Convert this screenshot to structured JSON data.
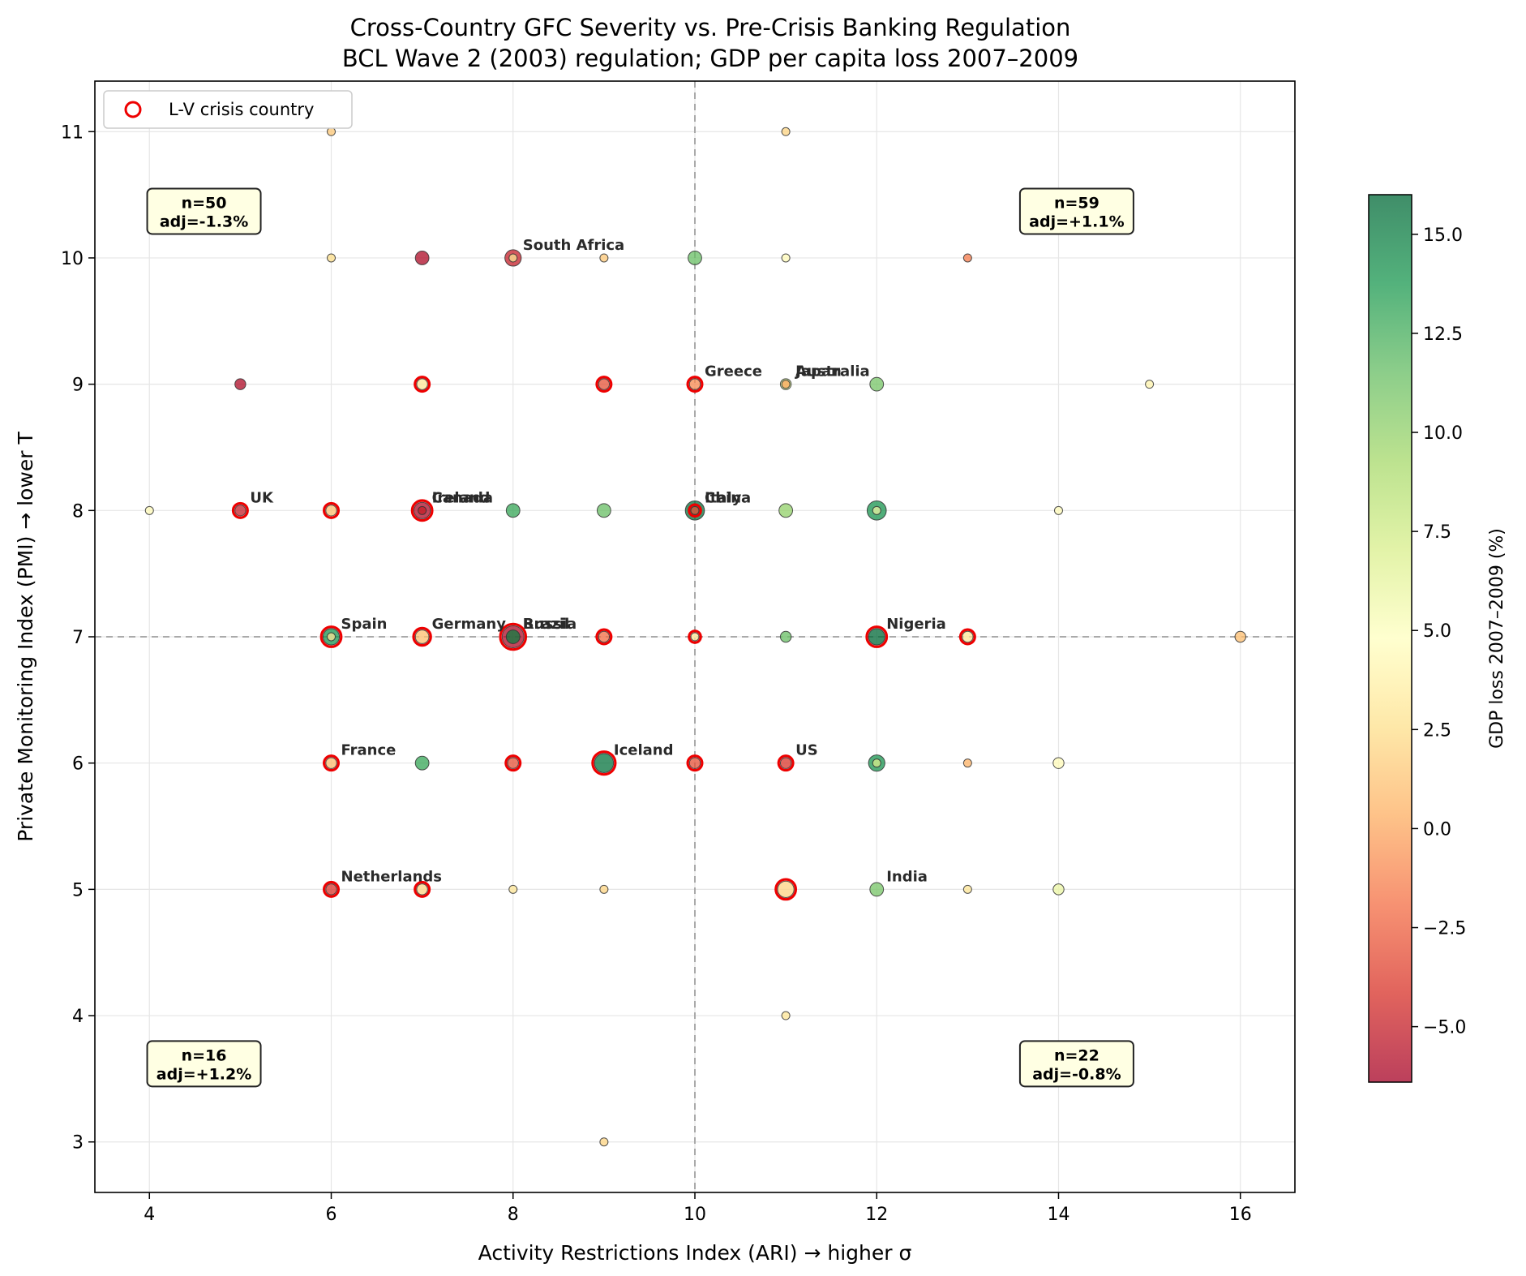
{
  "chart_data": {
    "type": "scatter",
    "title": "Cross-Country GFC Severity vs. Pre-Crisis Banking Regulation",
    "subtitle": "BCL Wave 2 (2003) regulation; GDP per capita loss 2007–2009",
    "xlabel": "Activity Restrictions Index (ARI) → higher σ",
    "ylabel": "Private Monitoring Index (PMI) → lower T",
    "xlim": [
      3.4,
      16.6
    ],
    "ylim": [
      2.6,
      11.4
    ],
    "xticks": [
      4,
      6,
      8,
      10,
      12,
      14,
      16
    ],
    "yticks": [
      3,
      4,
      5,
      6,
      7,
      8,
      9,
      10,
      11
    ],
    "grid": true,
    "reference_lines": {
      "x": 10,
      "y": 7
    },
    "colorbar": {
      "label": "GDP loss 2007–2009 (%)",
      "range": [
        -6.4,
        16.0
      ],
      "ticks": [
        "−5.0",
        "−2.5",
        "0.0",
        "2.5",
        "5.0",
        "7.5",
        "10.0",
        "12.5",
        "15.0"
      ],
      "tick_values": [
        -5,
        -2.5,
        0,
        2.5,
        5,
        7.5,
        10,
        12.5,
        15
      ],
      "colormap": "RdYlGn",
      "alpha": 0.75
    },
    "legend": {
      "label": "L-V crisis country",
      "placement": "top-left",
      "marker_color": "#ee0000"
    },
    "quadrant_stats": [
      {
        "position": "top-left",
        "n": "n=50",
        "adj": "adj=-1.3%",
        "at": [
          4.6,
          10.35
        ]
      },
      {
        "position": "top-right",
        "n": "n=59",
        "adj": "adj=+1.1%",
        "at": [
          14.2,
          10.35
        ]
      },
      {
        "position": "bottom-left",
        "n": "n=16",
        "adj": "adj=+1.2%",
        "at": [
          4.6,
          3.6
        ]
      },
      {
        "position": "bottom-right",
        "n": "n=22",
        "adj": "adj=-0.8%",
        "at": [
          14.2,
          3.6
        ]
      }
    ],
    "points": [
      {
        "x": 4,
        "y": 8,
        "v": 4.5,
        "n": 1,
        "crisis": false
      },
      {
        "x": 5,
        "y": 9,
        "v": -6.0,
        "n": 2,
        "crisis": false
      },
      {
        "x": 5,
        "y": 8,
        "v": -5.0,
        "n": 2,
        "crisis": true,
        "label": "UK"
      },
      {
        "x": 6,
        "y": 11,
        "v": 1.5,
        "n": 1,
        "crisis": false
      },
      {
        "x": 6,
        "y": 10,
        "v": 2.5,
        "n": 1,
        "crisis": false
      },
      {
        "x": 6,
        "y": 8,
        "v": 1.0,
        "n": 2,
        "crisis": true
      },
      {
        "x": 6,
        "y": 7,
        "v": 14.0,
        "n": 4,
        "crisis": true,
        "label": "Spain"
      },
      {
        "x": 6,
        "y": 7,
        "v": 3.0,
        "n": 1,
        "crisis": false
      },
      {
        "x": 6,
        "y": 6,
        "v": 1.0,
        "n": 2,
        "crisis": true,
        "label": "France"
      },
      {
        "x": 6,
        "y": 5,
        "v": -4.0,
        "n": 2,
        "crisis": true,
        "label": "Netherlands"
      },
      {
        "x": 7,
        "y": 10,
        "v": -6.0,
        "n": 3,
        "crisis": false
      },
      {
        "x": 7,
        "y": 9,
        "v": 3.0,
        "n": 2,
        "crisis": true
      },
      {
        "x": 7,
        "y": 8,
        "v": -6.0,
        "n": 4,
        "crisis": true,
        "label": "Canada"
      },
      {
        "x": 7,
        "y": 8,
        "v": -5.0,
        "n": 1,
        "crisis": false,
        "label": "Ireland"
      },
      {
        "x": 7,
        "y": 7,
        "v": 1.0,
        "n": 3,
        "crisis": true,
        "label": "Germany"
      },
      {
        "x": 7,
        "y": 6,
        "v": 13.0,
        "n": 3,
        "crisis": false
      },
      {
        "x": 7,
        "y": 5,
        "v": 2.0,
        "n": 2,
        "crisis": true
      },
      {
        "x": 8,
        "y": 10,
        "v": -5.0,
        "n": 4,
        "crisis": false,
        "label": "South Africa"
      },
      {
        "x": 8,
        "y": 10,
        "v": 3.0,
        "n": 1,
        "crisis": false
      },
      {
        "x": 8,
        "y": 8,
        "v": 13.0,
        "n": 3,
        "crisis": false
      },
      {
        "x": 8,
        "y": 7,
        "v": -6.0,
        "n": 6,
        "crisis": true,
        "label": "Brazil"
      },
      {
        "x": 8,
        "y": 7,
        "v": 15.0,
        "n": 3,
        "crisis": false,
        "label": "Russia"
      },
      {
        "x": 8,
        "y": 6,
        "v": -3.0,
        "n": 2,
        "crisis": true
      },
      {
        "x": 8,
        "y": 5,
        "v": 3.0,
        "n": 1,
        "crisis": false
      },
      {
        "x": 9,
        "y": 10,
        "v": 1.5,
        "n": 1,
        "crisis": false
      },
      {
        "x": 9,
        "y": 9,
        "v": -3.0,
        "n": 2,
        "crisis": true
      },
      {
        "x": 9,
        "y": 8,
        "v": 11.5,
        "n": 3,
        "crisis": false
      },
      {
        "x": 9,
        "y": 7,
        "v": -2.0,
        "n": 2,
        "crisis": true
      },
      {
        "x": 9,
        "y": 6,
        "v": 15.5,
        "n": 5,
        "crisis": true,
        "label": "Iceland"
      },
      {
        "x": 9,
        "y": 5,
        "v": 2.0,
        "n": 1,
        "crisis": false
      },
      {
        "x": 9,
        "y": 3,
        "v": 2.0,
        "n": 1,
        "crisis": false
      },
      {
        "x": 10,
        "y": 10,
        "v": 11.5,
        "n": 3,
        "crisis": false
      },
      {
        "x": 10,
        "y": 9,
        "v": -1.0,
        "n": 2,
        "crisis": true,
        "label": "Greece"
      },
      {
        "x": 10,
        "y": 8,
        "v": 15.5,
        "n": 5,
        "crisis": false,
        "label": "China"
      },
      {
        "x": 10,
        "y": 8,
        "v": -3.0,
        "n": 1,
        "crisis": true,
        "label": "Italy"
      },
      {
        "x": 10,
        "y": 7,
        "v": 3.0,
        "n": 1,
        "crisis": true
      },
      {
        "x": 10,
        "y": 6,
        "v": -3.0,
        "n": 2,
        "crisis": true
      },
      {
        "x": 11,
        "y": 11,
        "v": 2.0,
        "n": 1,
        "crisis": false
      },
      {
        "x": 11,
        "y": 10,
        "v": 4.5,
        "n": 1,
        "crisis": false
      },
      {
        "x": 11,
        "y": 9,
        "v": 7.5,
        "n": 2,
        "crisis": false,
        "label": "Australia"
      },
      {
        "x": 11,
        "y": 9,
        "v": 0.0,
        "n": 1,
        "crisis": false,
        "label": "Japan"
      },
      {
        "x": 11,
        "y": 8,
        "v": 10.0,
        "n": 3,
        "crisis": false
      },
      {
        "x": 11,
        "y": 7,
        "v": 11.5,
        "n": 2,
        "crisis": false
      },
      {
        "x": 11,
        "y": 6,
        "v": -4.0,
        "n": 2,
        "crisis": true,
        "label": "US"
      },
      {
        "x": 11,
        "y": 5,
        "v": 2.0,
        "n": 4,
        "crisis": true
      },
      {
        "x": 11,
        "y": 4,
        "v": 3.0,
        "n": 1,
        "crisis": false
      },
      {
        "x": 12,
        "y": 9,
        "v": 11.0,
        "n": 3,
        "crisis": false
      },
      {
        "x": 12,
        "y": 8,
        "v": 14.0,
        "n": 5,
        "crisis": false
      },
      {
        "x": 12,
        "y": 8,
        "v": 6.0,
        "n": 1,
        "crisis": false
      },
      {
        "x": 12,
        "y": 7,
        "v": 16.0,
        "n": 4,
        "crisis": true,
        "label": "Nigeria"
      },
      {
        "x": 12,
        "y": 6,
        "v": 14.0,
        "n": 4,
        "crisis": false
      },
      {
        "x": 12,
        "y": 6,
        "v": 7.0,
        "n": 1,
        "crisis": false
      },
      {
        "x": 12,
        "y": 5,
        "v": 11.0,
        "n": 3,
        "crisis": false,
        "label": "India"
      },
      {
        "x": 13,
        "y": 10,
        "v": -1.5,
        "n": 1,
        "crisis": false
      },
      {
        "x": 13,
        "y": 7,
        "v": 3.0,
        "n": 2,
        "crisis": true
      },
      {
        "x": 13,
        "y": 6,
        "v": 0.5,
        "n": 1,
        "crisis": false
      },
      {
        "x": 13,
        "y": 5,
        "v": 3.0,
        "n": 1,
        "crisis": false
      },
      {
        "x": 14,
        "y": 8,
        "v": 4.5,
        "n": 1,
        "crisis": false
      },
      {
        "x": 14,
        "y": 6,
        "v": 4.5,
        "n": 2,
        "crisis": false
      },
      {
        "x": 14,
        "y": 5,
        "v": 6.0,
        "n": 2,
        "crisis": false
      },
      {
        "x": 15,
        "y": 9,
        "v": 4.0,
        "n": 1,
        "crisis": false
      },
      {
        "x": 16,
        "y": 7,
        "v": 1.0,
        "n": 2,
        "crisis": false
      }
    ]
  }
}
